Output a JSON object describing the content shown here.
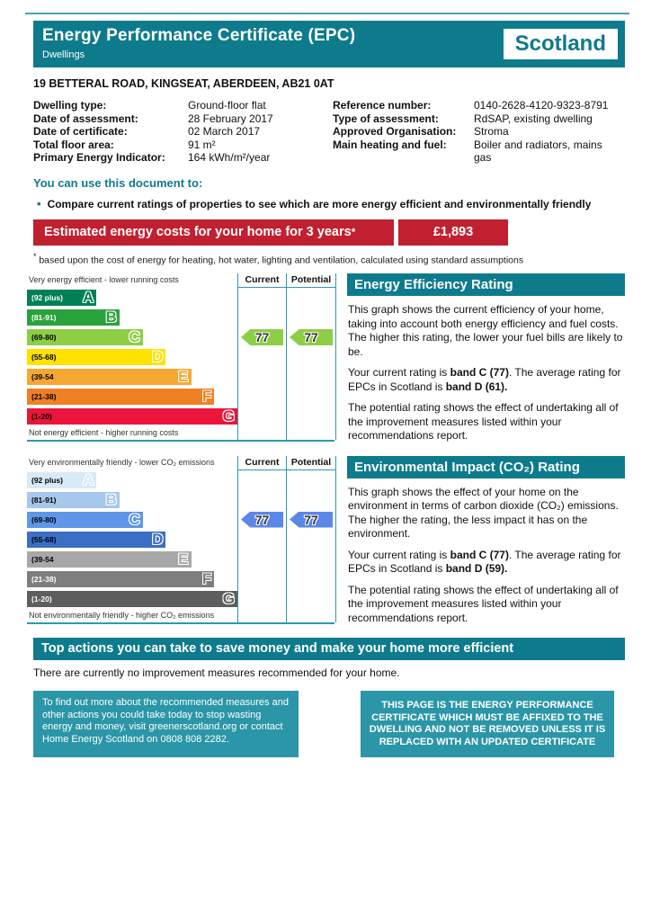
{
  "page": {
    "header": {
      "title": "Energy Performance Certificate (EPC)",
      "subtitle": "Dwellings",
      "region": "Scotland"
    },
    "address": "19 BETTERAL ROAD, KINGSEAT, ABERDEEN, AB21 0AT",
    "details_left": [
      {
        "label": "Dwelling type:",
        "value": "Ground-floor flat"
      },
      {
        "label": "Date of assessment:",
        "value": "28 February 2017"
      },
      {
        "label": "Date of certificate:",
        "value": "02 March 2017"
      },
      {
        "label": "Total floor area:",
        "value": "91 m²"
      },
      {
        "label": "Primary Energy Indicator:",
        "value": "164 kWh/m²/year"
      }
    ],
    "details_right": [
      {
        "label": "Reference number:",
        "value": "0140-2628-4120-9323-8791"
      },
      {
        "label": "Type of assessment:",
        "value": "RdSAP, existing dwelling"
      },
      {
        "label": "Approved Organisation:",
        "value": "Stroma"
      },
      {
        "label": "Main heating and fuel:",
        "value": "Boiler and radiators, mains gas"
      }
    ],
    "usage": {
      "heading": "You can use this document to:",
      "bullet": "Compare current ratings of properties to see which are more energy efficient and environmentally friendly"
    },
    "cost_banner": {
      "label": "Estimated energy costs for your home for 3 years",
      "label_superscript": "*",
      "value": "£1,893"
    },
    "footnote": {
      "superscript": "*",
      "text": " based upon the cost of energy for heating, hot water, lighting and ventilation, calculated using standard assumptions"
    },
    "actions": {
      "heading": "Top actions you can take to save money and make your home more efficient",
      "body": "There are currently no improvement measures recommended for your home."
    },
    "info_boxes": {
      "left": "To find out more about the recommended measures and other actions you could take today to stop wasting energy and money, visit greenerscotland.org or contact Home Energy Scotland on 0808 808 2282.",
      "right": "THIS PAGE IS THE ENERGY PERFORMANCE CERTIFICATE WHICH MUST BE AFFIXED TO THE DWELLING AND NOT BE REMOVED UNLESS IT IS REPLACED WITH AN UPDATED CERTIFICATE"
    },
    "colors": {
      "teal": "#0e7b8d",
      "teal_border": "#2b9ab0",
      "red": "#c02030"
    }
  },
  "chart_data": [
    {
      "type": "bar",
      "title": "Energy Efficiency Rating",
      "top_label": "Very energy efficient - lower running costs",
      "bottom_label": "Not energy efficient - higher running costs",
      "columns": [
        "Current",
        "Potential"
      ],
      "bands": [
        {
          "letter": "A",
          "range": "(92 plus)",
          "color": "#008054",
          "width_pct": 33,
          "label_color": "#ffffff"
        },
        {
          "letter": "B",
          "range": "(81-91)",
          "color": "#2aa23c",
          "width_pct": 44,
          "label_color": "#ffffff"
        },
        {
          "letter": "C",
          "range": "(69-80)",
          "color": "#8dce46",
          "width_pct": 55,
          "label_color": "#000000"
        },
        {
          "letter": "D",
          "range": "(55-68)",
          "color": "#ffe200",
          "width_pct": 66,
          "label_color": "#000000"
        },
        {
          "letter": "E",
          "range": "(39-54",
          "color": "#f5a733",
          "width_pct": 78,
          "label_color": "#000000"
        },
        {
          "letter": "F",
          "range": "(21-38)",
          "color": "#ef8023",
          "width_pct": 89,
          "label_color": "#000000"
        },
        {
          "letter": "G",
          "range": "(1-20)",
          "color": "#e9153b",
          "width_pct": 100,
          "label_color": "#000000"
        }
      ],
      "current": {
        "value": 77,
        "band": "C",
        "band_index": 2,
        "arrow_color": "#8dce46"
      },
      "potential": {
        "value": 77,
        "band": "C",
        "band_index": 2,
        "arrow_color": "#8dce46"
      },
      "panel": {
        "title": "Energy Efficiency Rating",
        "paragraphs": [
          [
            {
              "text": "This graph shows the current efficiency of your home, taking into account both energy efficiency and fuel costs. The higher this rating, the lower your fuel bills are likely to be."
            }
          ],
          [
            {
              "text": "Your current rating is "
            },
            {
              "text": "band C (77)",
              "bold": true
            },
            {
              "text": ". The average rating for EPCs in Scotland is "
            },
            {
              "text": "band D (61).",
              "bold": true
            }
          ],
          [
            {
              "text": "The potential rating shows the effect of undertaking all of the improvement measures listed within your recommendations report."
            }
          ]
        ]
      }
    },
    {
      "type": "bar",
      "title": "Environmental Impact (CO₂) Rating",
      "top_label": "Very environmentally friendly - lower CO₂ emissions",
      "bottom_label": "Not environmentally friendly - higher CO₂ emissions",
      "columns": [
        "Current",
        "Potential"
      ],
      "bands": [
        {
          "letter": "A",
          "range": "(92 plus)",
          "color": "#d8e9f7",
          "width_pct": 33,
          "label_color": "#000000"
        },
        {
          "letter": "B",
          "range": "(81-91)",
          "color": "#a6c8ec",
          "width_pct": 44,
          "label_color": "#000000"
        },
        {
          "letter": "C",
          "range": "(69-80)",
          "color": "#5e97e8",
          "width_pct": 55,
          "label_color": "#000000"
        },
        {
          "letter": "D",
          "range": "(55-68)",
          "color": "#3a6fc4",
          "width_pct": 66,
          "label_color": "#000000"
        },
        {
          "letter": "E",
          "range": "(39-54",
          "color": "#a8a8a8",
          "width_pct": 78,
          "label_color": "#000000"
        },
        {
          "letter": "F",
          "range": "(21-38)",
          "color": "#7e7e7e",
          "width_pct": 89,
          "label_color": "#ffffff"
        },
        {
          "letter": "G",
          "range": "(1-20)",
          "color": "#5e5e5e",
          "width_pct": 100,
          "label_color": "#ffffff"
        }
      ],
      "current": {
        "value": 77,
        "band": "C",
        "band_index": 2,
        "arrow_color": "#5b87e8"
      },
      "potential": {
        "value": 77,
        "band": "C",
        "band_index": 2,
        "arrow_color": "#5b87e8"
      },
      "panel": {
        "title": "Environmental Impact (CO₂) Rating",
        "paragraphs": [
          [
            {
              "text": "This graph shows the effect of your home on the environment in terms of carbon dioxide (CO₂) emissions. The higher the rating, the less impact it has on the environment."
            }
          ],
          [
            {
              "text": "Your current rating is "
            },
            {
              "text": "band C (77)",
              "bold": true
            },
            {
              "text": ". The average rating for EPCs in Scotland is "
            },
            {
              "text": "band D (59).",
              "bold": true
            }
          ],
          [
            {
              "text": "The potential rating shows the effect of undertaking all of the improvement measures listed within your recommendations report."
            }
          ]
        ]
      }
    }
  ]
}
